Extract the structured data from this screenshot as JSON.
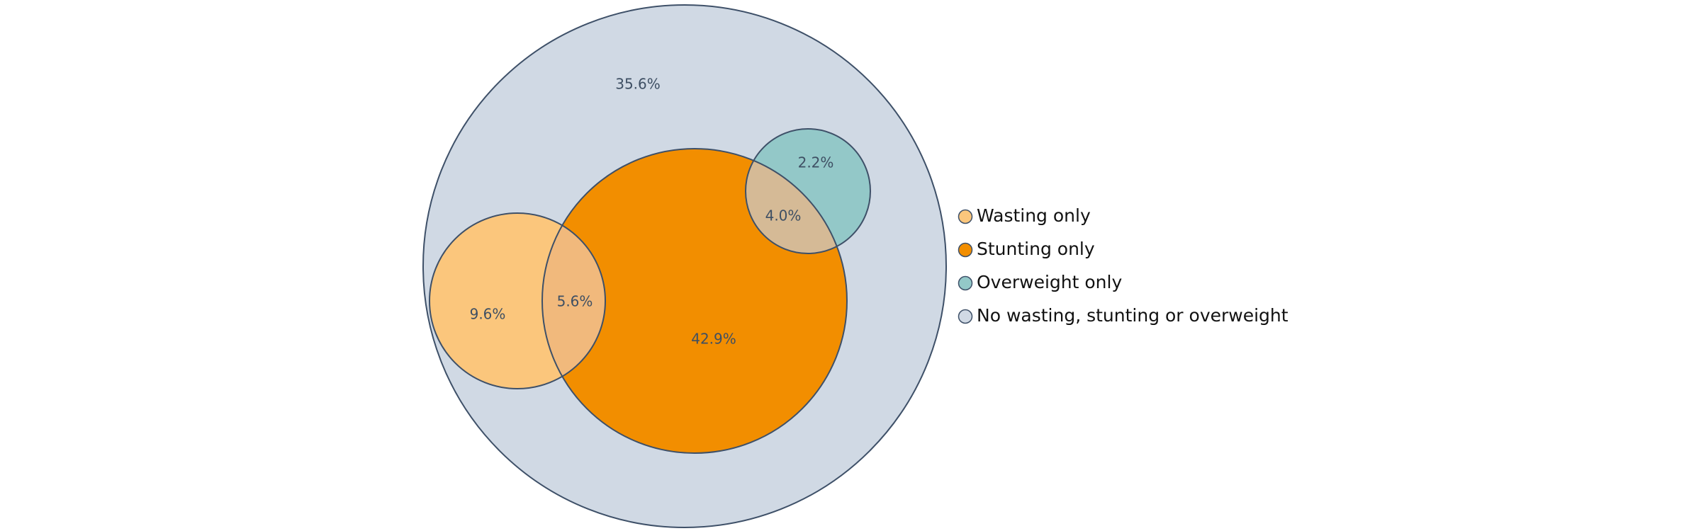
{
  "chart_data": {
    "type": "venn",
    "sets": [
      {
        "name": "Wasting only",
        "color": "#fbc67c"
      },
      {
        "name": "Stunting only",
        "color": "#f28e00"
      },
      {
        "name": "Overweight only",
        "color": "#93c8c8"
      },
      {
        "name": "No wasting, stunting or overweight",
        "color": "#d0d9e4"
      }
    ],
    "regions": [
      {
        "sets": [
          "No wasting, stunting or overweight"
        ],
        "value": 35.6,
        "label": "35.6%"
      },
      {
        "sets": [
          "Wasting only"
        ],
        "value": 9.6,
        "label": "9.6%"
      },
      {
        "sets": [
          "Wasting only",
          "Stunting only"
        ],
        "value": 5.6,
        "label": "5.6%"
      },
      {
        "sets": [
          "Stunting only"
        ],
        "value": 42.9,
        "label": "42.9%"
      },
      {
        "sets": [
          "Overweight only"
        ],
        "value": 2.2,
        "label": "2.2%"
      },
      {
        "sets": [
          "Stunting only",
          "Overweight only"
        ],
        "value": 4.0,
        "label": "4.0%"
      }
    ],
    "overlap_colors": {
      "wasting_stunting": "#f1b97c",
      "stunting_overweight": "#d5ba96"
    },
    "outline_color": "#3e5068",
    "label_color": "#3e4f63",
    "legend_position": "right"
  }
}
